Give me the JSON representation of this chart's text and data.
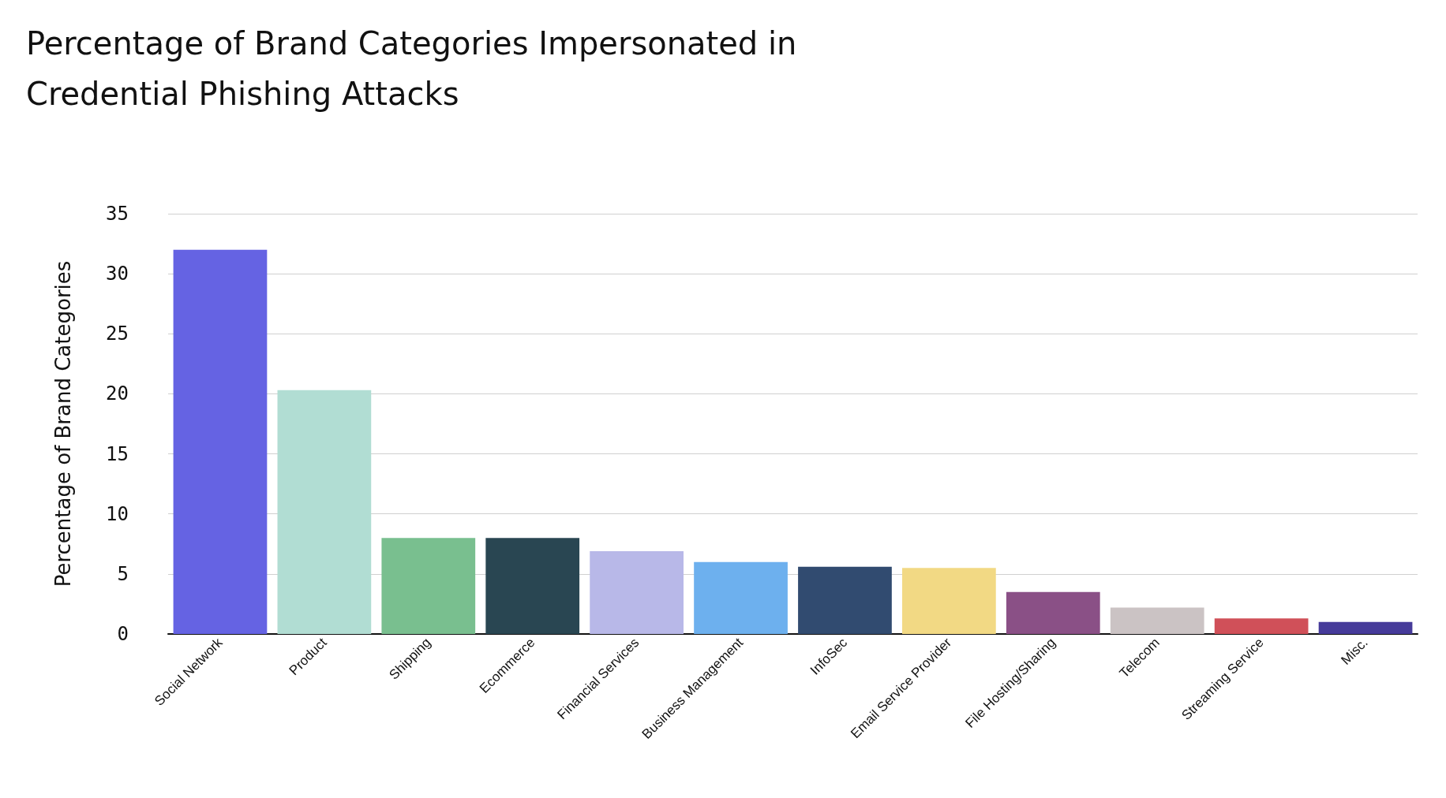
{
  "chart_data": {
    "type": "bar",
    "title": "Percentage of Brand Categories Impersonated in Credential Phishing Attacks",
    "ylabel": "Percentage of Brand Categories",
    "categories": [
      "Social Network",
      "Product",
      "Shipping",
      "Ecommerce",
      "Financial Services",
      "Business Management",
      "InfoSec",
      "Email Service Provider",
      "File Hosting/Sharing",
      "Telecom",
      "Streaming Service",
      "Misc."
    ],
    "values": [
      32.0,
      20.3,
      8.0,
      8.0,
      6.9,
      6.0,
      5.6,
      5.5,
      3.5,
      2.2,
      1.3,
      1.0
    ],
    "colors": [
      "#6563e3",
      "#b1ddd3",
      "#79bf8f",
      "#294652",
      "#b8b8e8",
      "#6db0ee",
      "#314b70",
      "#f2d984",
      "#8a5086",
      "#cbc3c4",
      "#d05059",
      "#463b9a"
    ],
    "ylim": [
      0,
      35
    ],
    "yticks": [
      0,
      5,
      10,
      15,
      20,
      25,
      30,
      35
    ],
    "grid": "y"
  }
}
